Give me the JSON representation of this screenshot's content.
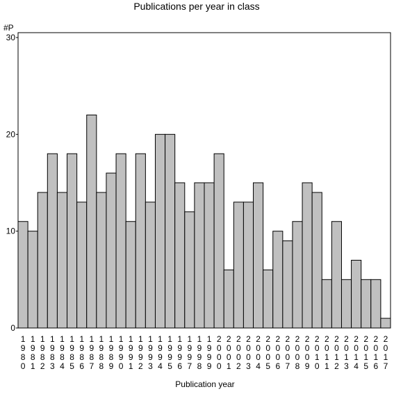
{
  "chart_data": {
    "type": "bar",
    "title": "Publications per year in class",
    "ylabel": "#P",
    "xlabel": "Publication year",
    "ylim": [
      0,
      30
    ],
    "yticks": [
      0,
      10,
      20,
      30
    ],
    "grid": false,
    "bar_color": "#c0c0c0",
    "categories": [
      "1980",
      "1981",
      "1982",
      "1983",
      "1984",
      "1985",
      "1986",
      "1987",
      "1988",
      "1989",
      "1990",
      "1991",
      "1992",
      "1993",
      "1994",
      "1995",
      "1996",
      "1997",
      "1998",
      "1999",
      "2000",
      "2001",
      "2002",
      "2003",
      "2004",
      "2005",
      "2006",
      "2007",
      "2008",
      "2009",
      "2010",
      "2011",
      "2012",
      "2013",
      "2014",
      "2015",
      "2016",
      "2017"
    ],
    "values": [
      11,
      10,
      14,
      18,
      14,
      18,
      13,
      22,
      14,
      16,
      18,
      11,
      18,
      13,
      20,
      20,
      15,
      12,
      15,
      15,
      18,
      6,
      13,
      13,
      15,
      6,
      10,
      9,
      11,
      15,
      14,
      5,
      11,
      5,
      7,
      5,
      5,
      1
    ]
  }
}
